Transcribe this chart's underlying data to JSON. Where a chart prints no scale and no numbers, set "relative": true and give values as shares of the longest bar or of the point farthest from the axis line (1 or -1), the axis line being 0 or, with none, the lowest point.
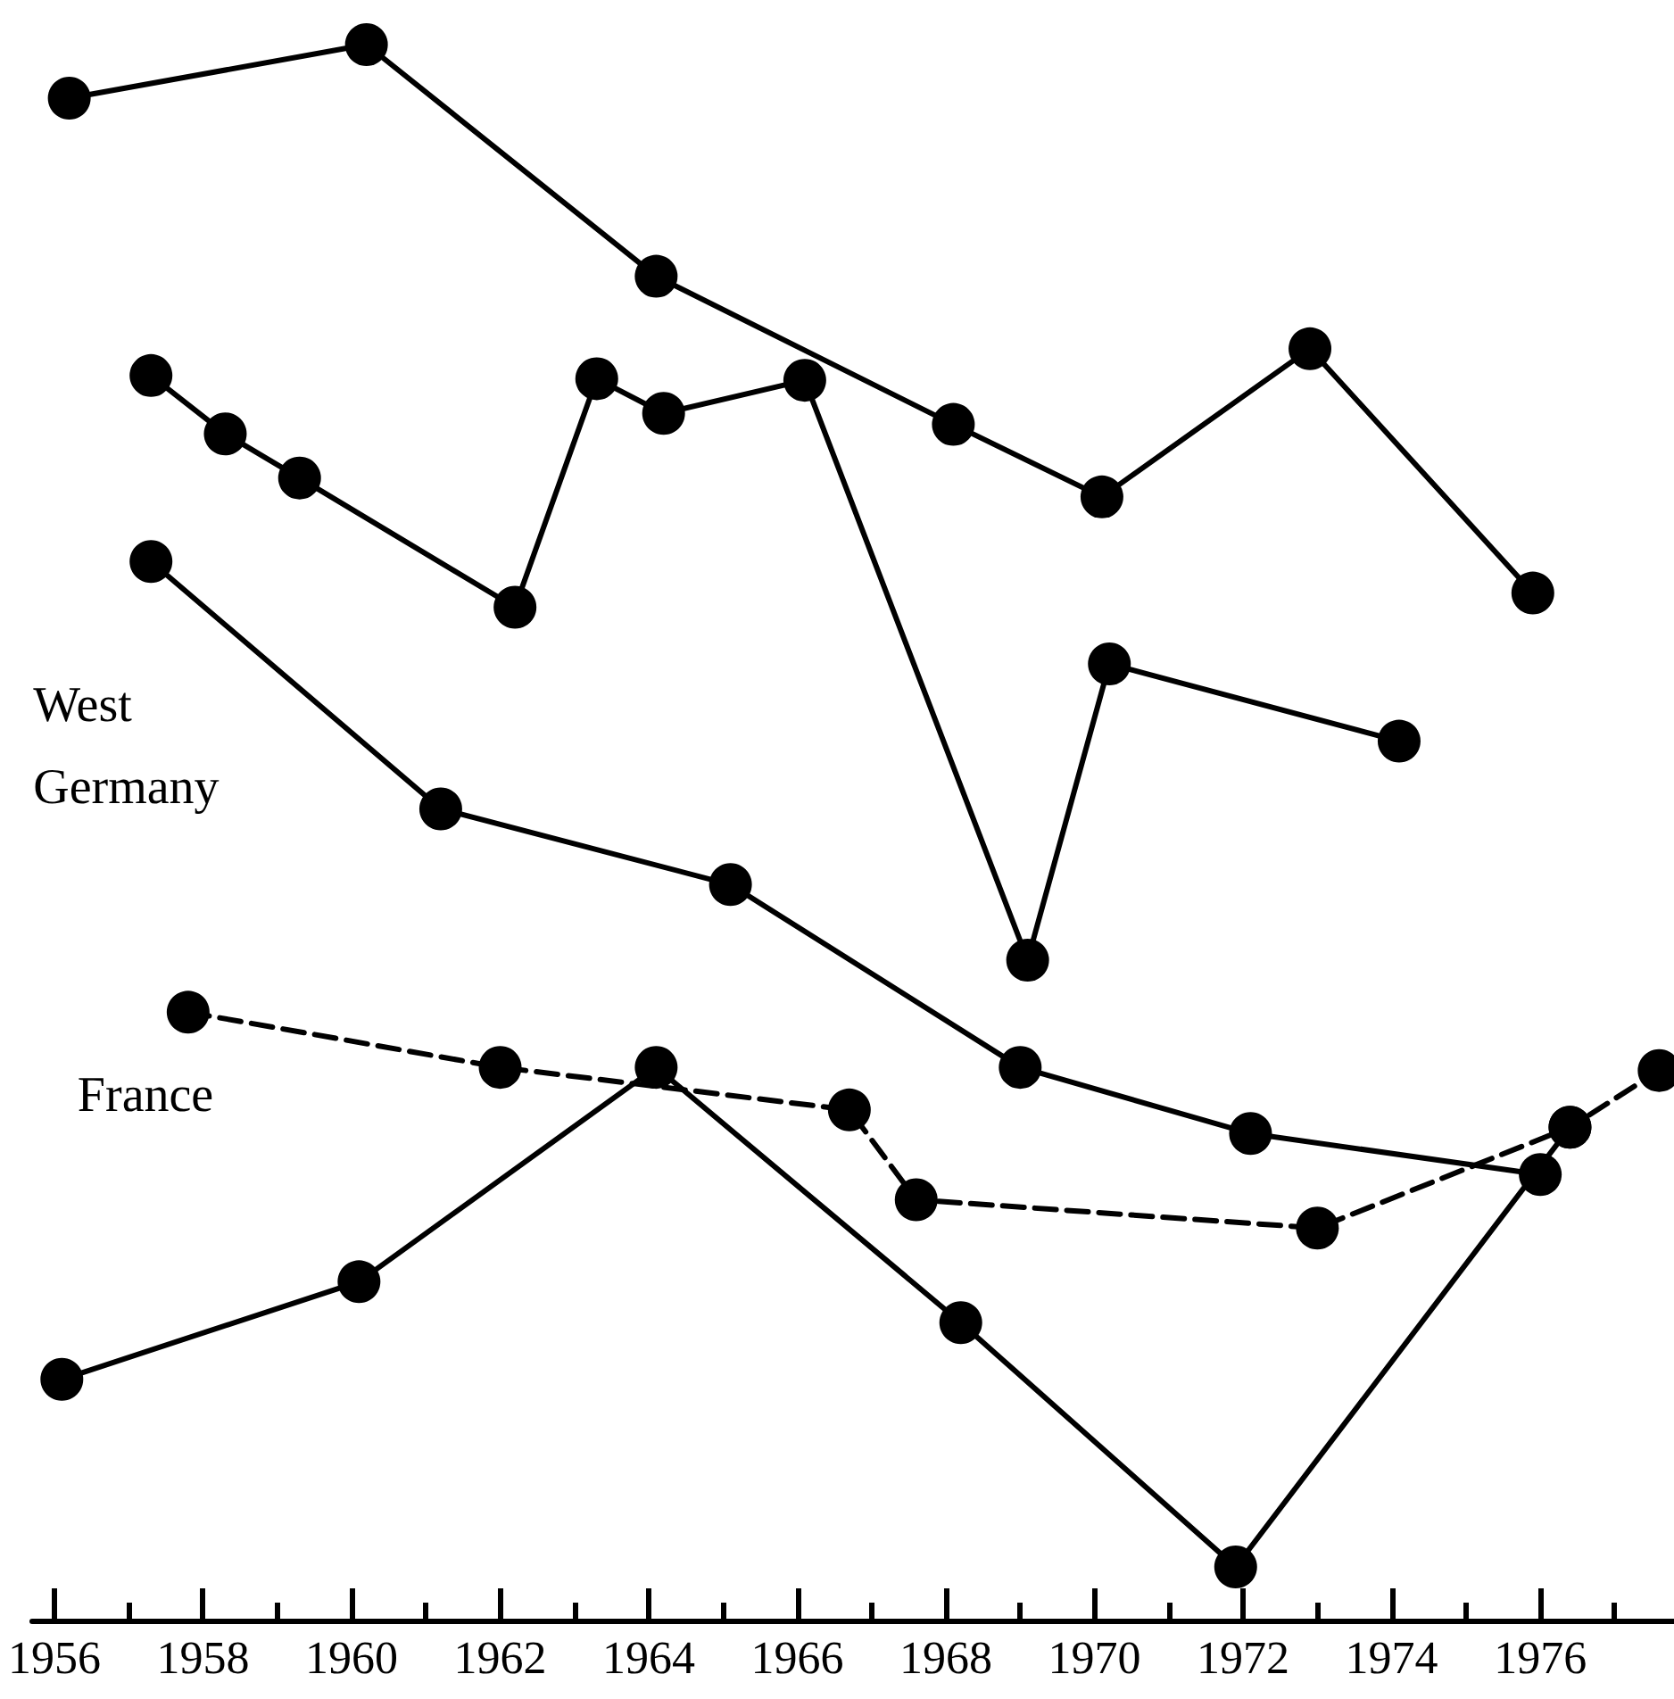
{
  "chart_data": {
    "type": "line",
    "relative": true,
    "xlim": [
      1955.7,
      1977.8
    ],
    "xticks": [
      1956,
      {
        "value": 1957,
        "label": null
      },
      1958,
      {
        "value": 1959,
        "label": null
      },
      1960,
      {
        "value": 1961,
        "label": null
      },
      1962,
      {
        "value": 1963,
        "label": null
      },
      1964,
      {
        "value": 1965,
        "label": null
      },
      1966,
      {
        "value": 1967,
        "label": null
      },
      1968,
      {
        "value": 1969,
        "label": null
      },
      1970,
      {
        "value": 1971,
        "label": null
      },
      1972,
      {
        "value": 1973,
        "label": null
      },
      1974,
      {
        "value": 1975,
        "label": null
      },
      1976,
      {
        "value": 1977,
        "label": null
      }
    ],
    "grid": false,
    "legend": false,
    "marker": "circle",
    "line_style": "solid",
    "series": [
      {
        "color": "#000000",
        "x": [
          1956.2,
          1960.2,
          1964.1,
          1968.1,
          1970.1,
          1972.9,
          1975.9
        ],
        "values": [
          0.966,
          1.0,
          0.853,
          0.759,
          0.713,
          0.807,
          0.652
        ]
      },
      {
        "color": "#000000",
        "x": [
          1957.3,
          1958.3,
          1959.3,
          1962.2,
          1963.3,
          1964.2,
          1966.1,
          1969.1,
          1970.2,
          1974.1
        ],
        "values": [
          0.79,
          0.753,
          0.725,
          0.643,
          0.788,
          0.766,
          0.787,
          0.419,
          0.607,
          0.558
        ]
      },
      {
        "name": "West Germany",
        "color": "#000000",
        "x": [
          1957.3,
          1961.2,
          1965.1,
          1969.0,
          1972.1,
          1976.0
        ],
        "values": [
          0.672,
          0.515,
          0.467,
          0.351,
          0.309,
          0.283
        ]
      },
      {
        "name": "France",
        "color": "#000000",
        "line_style": "dashed",
        "x": [
          1957.8,
          1962.0,
          1966.7,
          1967.6,
          1973.0,
          1976.4,
          1977.6
        ],
        "values": [
          0.386,
          0.351,
          0.324,
          0.267,
          0.249,
          0.313,
          0.349
        ]
      },
      {
        "color": "#000000",
        "x": [
          1956.1,
          1960.1,
          1964.1,
          1968.2,
          1971.9,
          1976.4
        ],
        "values": [
          0.153,
          0.215,
          0.351,
          0.189,
          0.034,
          0.313
        ]
      }
    ]
  }
}
